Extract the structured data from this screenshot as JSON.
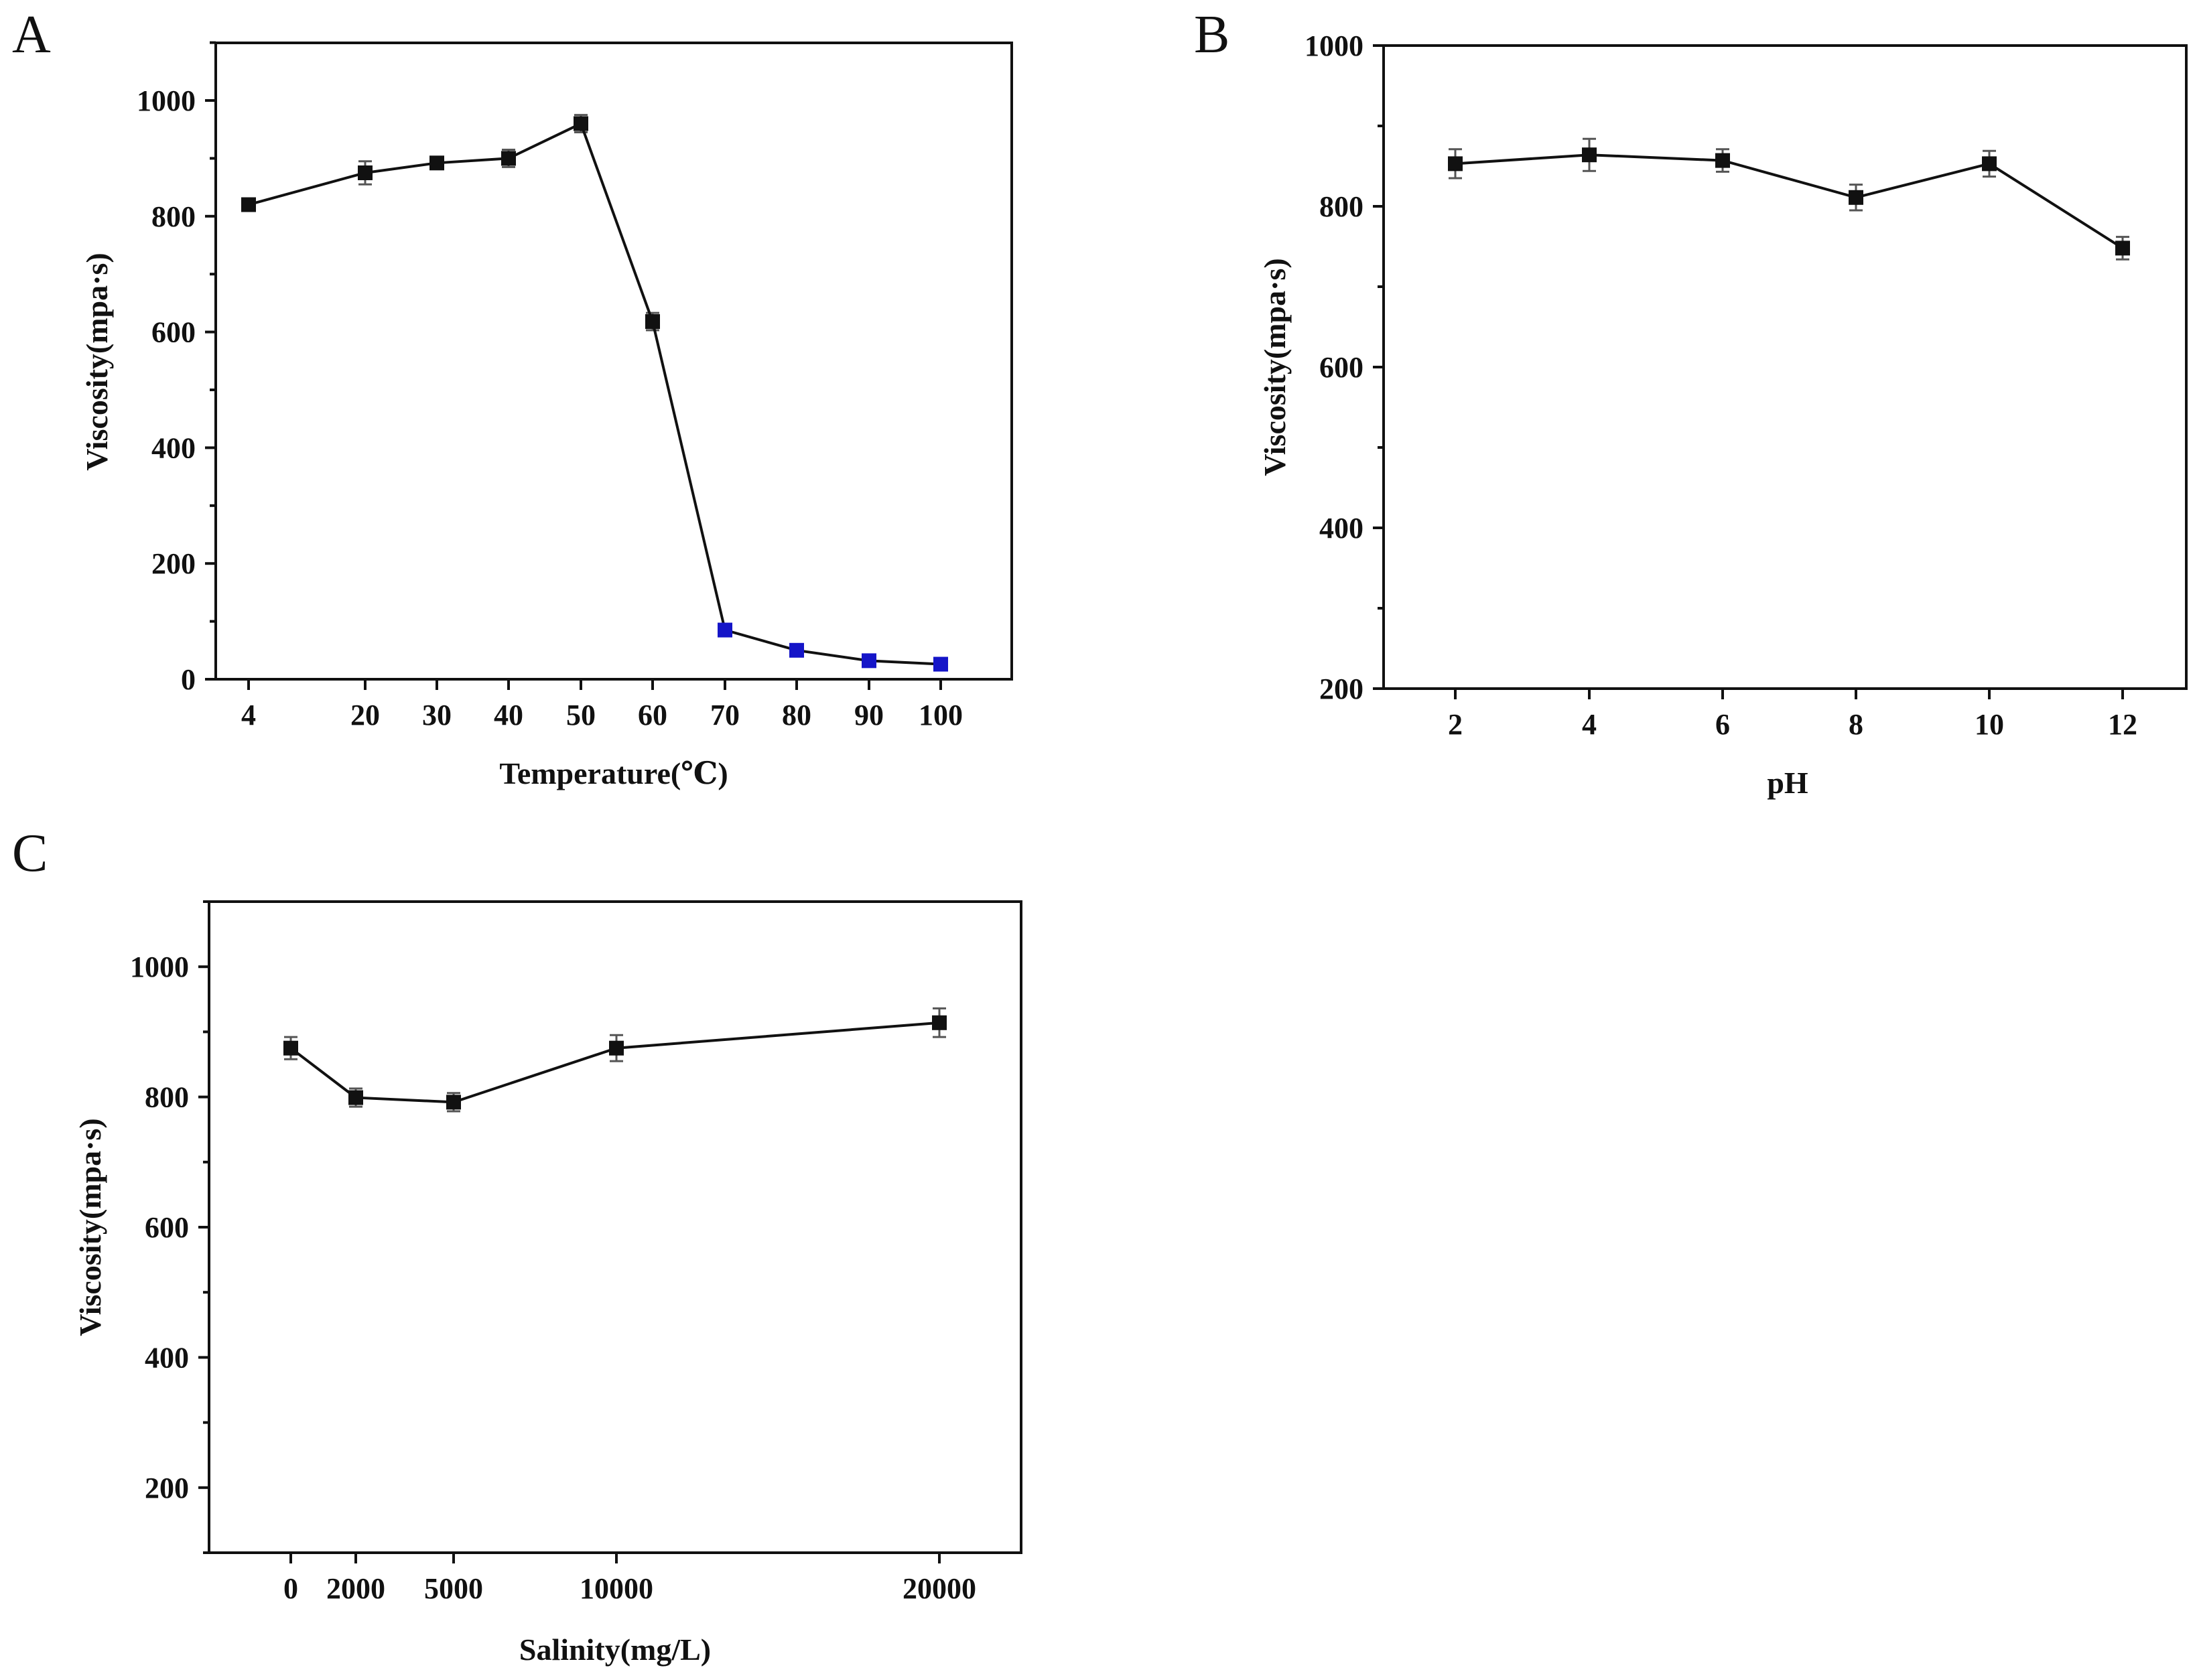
{
  "chart_data": [
    {
      "type": "line",
      "panel_label": "A",
      "xlabel": "Temperature(℃)",
      "ylabel": "Viscosity(mpa·s)",
      "x_tick_labels": [
        "4",
        "20",
        "30",
        "40",
        "50",
        "60",
        "70",
        "80",
        "90",
        "100"
      ],
      "y_tick_labels": [
        "0",
        "200",
        "400",
        "600",
        "800",
        "1000"
      ],
      "y_ticks": [
        0,
        200,
        400,
        600,
        800,
        1000
      ],
      "ylim": [
        0,
        1100
      ],
      "series": [
        {
          "name": "Viscosity",
          "line_color": "#111111",
          "points": [
            {
              "x": "4",
              "y": 820,
              "err": 8,
              "color": "#111111"
            },
            {
              "x": "20",
              "y": 875,
              "err": 20,
              "color": "#111111"
            },
            {
              "x": "30",
              "y": 892,
              "err": 8,
              "color": "#111111"
            },
            {
              "x": "40",
              "y": 900,
              "err": 15,
              "color": "#111111"
            },
            {
              "x": "50",
              "y": 960,
              "err": 15,
              "color": "#111111"
            },
            {
              "x": "60",
              "y": 618,
              "err": 15,
              "color": "#111111"
            },
            {
              "x": "70",
              "y": 85,
              "err": 8,
              "color": "#1515c8"
            },
            {
              "x": "80",
              "y": 50,
              "err": 5,
              "color": "#1515c8"
            },
            {
              "x": "90",
              "y": 32,
              "err": 5,
              "color": "#1515c8"
            },
            {
              "x": "100",
              "y": 26,
              "err": 5,
              "color": "#1515c8"
            }
          ]
        }
      ]
    },
    {
      "type": "line",
      "panel_label": "B",
      "xlabel": "pH",
      "ylabel": "Viscosity(mpa·s)",
      "x_tick_labels": [
        "2",
        "4",
        "6",
        "8",
        "10",
        "12"
      ],
      "y_tick_labels": [
        "200",
        "400",
        "600",
        "800",
        "1000"
      ],
      "y_ticks": [
        200,
        400,
        600,
        800,
        1000
      ],
      "ylim": [
        200,
        1000
      ],
      "series": [
        {
          "name": "Viscosity",
          "line_color": "#111111",
          "points": [
            {
              "x": "2",
              "y": 853,
              "err": 18,
              "color": "#111111"
            },
            {
              "x": "4",
              "y": 864,
              "err": 20,
              "color": "#111111"
            },
            {
              "x": "6",
              "y": 857,
              "err": 14,
              "color": "#111111"
            },
            {
              "x": "8",
              "y": 811,
              "err": 16,
              "color": "#111111"
            },
            {
              "x": "10",
              "y": 853,
              "err": 16,
              "color": "#111111"
            },
            {
              "x": "12",
              "y": 748,
              "err": 14,
              "color": "#111111"
            }
          ]
        }
      ]
    },
    {
      "type": "line",
      "panel_label": "C",
      "xlabel": "Salinity(mg/L)",
      "ylabel": "Viscosity(mpa·s)",
      "x_tick_labels": [
        "0",
        "2000",
        "5000",
        "10000",
        "20000"
      ],
      "y_tick_labels": [
        "200",
        "400",
        "600",
        "800",
        "1000"
      ],
      "y_ticks": [
        200,
        400,
        600,
        800,
        1000
      ],
      "ylim": [
        100,
        1100
      ],
      "series": [
        {
          "name": "Viscosity",
          "line_color": "#111111",
          "points": [
            {
              "x": "0",
              "y": 875,
              "err": 17,
              "color": "#111111"
            },
            {
              "x": "2000",
              "y": 799,
              "err": 14,
              "color": "#111111"
            },
            {
              "x": "5000",
              "y": 792,
              "err": 14,
              "color": "#111111"
            },
            {
              "x": "10000",
              "y": 875,
              "err": 20,
              "color": "#111111"
            },
            {
              "x": "20000",
              "y": 914,
              "err": 22,
              "color": "#111111"
            }
          ]
        }
      ]
    }
  ]
}
